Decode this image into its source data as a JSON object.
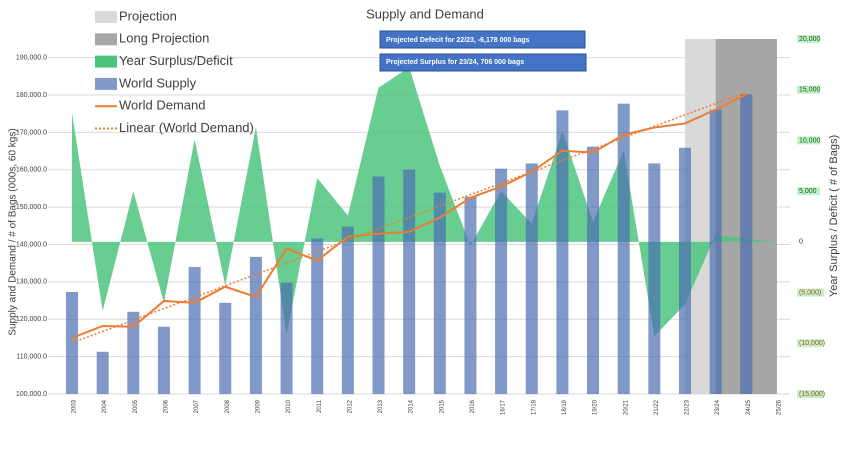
{
  "chart_data": {
    "type": "combo",
    "title": "Supply and Demand",
    "y_label": "Supply and Demand / # of Bags (000s, 60 kgs)",
    "y2_label": "Year Surplus / Deficit ( # of Bags)",
    "categories": [
      "2003",
      "2004",
      "2005",
      "2006",
      "2007",
      "2008",
      "2009",
      "2010",
      "2011",
      "2012",
      "2013",
      "2014",
      "2015",
      "2016",
      "16/17",
      "17/18",
      "18/19",
      "19/20",
      "20/21",
      "21/22",
      "22/23",
      "23/24",
      "24/25",
      "25/26"
    ],
    "bands": [
      {
        "name": "Projection",
        "color": "#d9d9d9",
        "start": "22/23",
        "end": "23/24"
      },
      {
        "name": "Long Projection",
        "color": "#a6a6a6",
        "start": "23/24",
        "end": "25/26"
      }
    ],
    "series": [
      {
        "name": "Year Surplus/Deficit",
        "type": "area",
        "axis": "y2",
        "color": "#4cc47e",
        "values": [
          12700,
          -6800,
          5000,
          -6000,
          10100,
          -4300,
          11300,
          -9100,
          6300,
          2600,
          15200,
          17200,
          7500,
          -400,
          5000,
          1800,
          10900,
          2000,
          9000,
          -9300,
          -6178,
          706,
          300,
          0
        ]
      },
      {
        "name": "World Supply",
        "type": "bar",
        "color": "#4a6db0",
        "values": [
          127300,
          111300,
          122000,
          118000,
          134000,
          124400,
          136700,
          129800,
          141600,
          144800,
          158200,
          160000,
          153900,
          152800,
          160300,
          161700,
          175900,
          166200,
          177700,
          161700,
          165900,
          176100,
          180200,
          null
        ]
      },
      {
        "name": "World Demand",
        "type": "line",
        "color": "#ed7d31",
        "values": [
          115000,
          118200,
          118000,
          124900,
          124400,
          128700,
          126000,
          138900,
          135700,
          142100,
          142900,
          143400,
          147200,
          152500,
          155500,
          159500,
          165100,
          164600,
          169400,
          171300,
          172400,
          176100,
          180200,
          null
        ]
      },
      {
        "name": "Linear (World Demand)",
        "type": "trend",
        "color": "#ed7d31",
        "values": [
          113700,
          116750,
          119800,
          122850,
          125900,
          128950,
          132000,
          135050,
          138100,
          141150,
          144200,
          147250,
          150300,
          153350,
          156400,
          159450,
          162500,
          165550,
          168600,
          171650,
          174700,
          177750,
          180800,
          null
        ]
      }
    ],
    "ylim": [
      100000,
      195000
    ],
    "yticks": [
      {
        "value": 100000,
        "label": "100,000.0"
      },
      {
        "value": 110000,
        "label": "110,000.0"
      },
      {
        "value": 120000,
        "label": "120,000.0"
      },
      {
        "value": 130000,
        "label": "130,000.0"
      },
      {
        "value": 140000,
        "label": "140,000.0"
      },
      {
        "value": 150000,
        "label": "150,000.0"
      },
      {
        "value": 160000,
        "label": "160,000.0"
      },
      {
        "value": 170000,
        "label": "170,000.0"
      },
      {
        "value": 180000,
        "label": "180,000.0"
      },
      {
        "value": 190000,
        "label": "190,000.0"
      }
    ],
    "y2lim": [
      -15000,
      20000
    ],
    "y2ticks": [
      {
        "value": -15000,
        "label": "(15,000)"
      },
      {
        "value": -10000,
        "label": "(10,000)"
      },
      {
        "value": -5000,
        "label": "(5,000)"
      },
      0,
      {
        "value": 5000,
        "label": "5,000"
      },
      {
        "value": 10000,
        "label": "10,000"
      },
      {
        "value": 15000,
        "label": "15,000"
      },
      {
        "value": 20000,
        "label": "20,000"
      }
    ],
    "grid": true,
    "annotations": [
      "Projected Defecit for 22/23, -6,178 000 bags",
      "Projected Surplus for 23/24, 706 000 bags"
    ]
  }
}
